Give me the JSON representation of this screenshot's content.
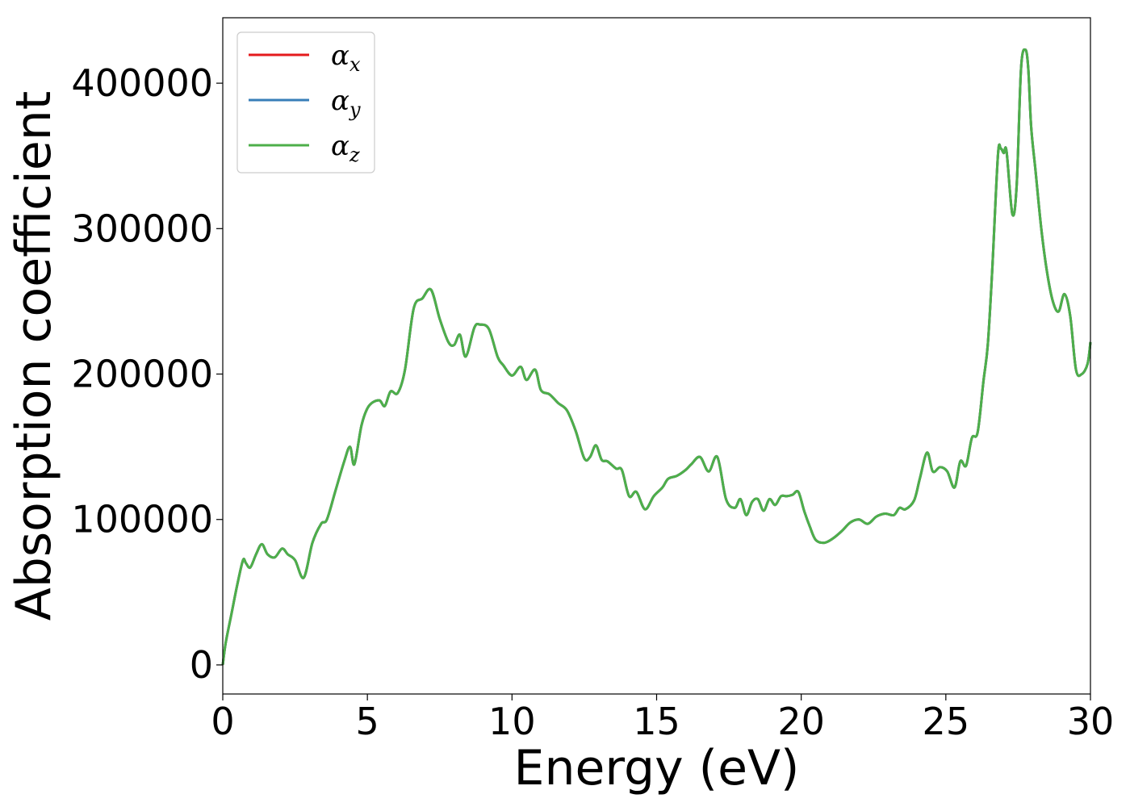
{
  "chart_data": {
    "type": "line",
    "xlabel": "Energy (eV)",
    "ylabel": "Absorption coefficient",
    "xlim": [
      0,
      30
    ],
    "ylim": [
      -20000,
      445000
    ],
    "xticks": [
      0,
      5,
      10,
      15,
      20,
      25,
      30
    ],
    "yticks": [
      0,
      100000,
      200000,
      300000,
      400000
    ],
    "grid": false,
    "legend_position": "top-left",
    "series": [
      {
        "name": "α",
        "sub": "x",
        "color": "#e41a1c"
      },
      {
        "name": "α",
        "sub": "y",
        "color": "#377eb8"
      },
      {
        "name": "α",
        "sub": "z",
        "color": "#4daf4a"
      }
    ],
    "x": [
      0.0,
      0.1,
      0.3,
      0.5,
      0.7,
      0.8,
      0.95,
      1.15,
      1.35,
      1.55,
      1.8,
      2.05,
      2.25,
      2.5,
      2.8,
      3.1,
      3.4,
      3.6,
      3.9,
      4.2,
      4.4,
      4.55,
      4.8,
      5.05,
      5.4,
      5.6,
      5.8,
      6.05,
      6.3,
      6.6,
      6.9,
      7.2,
      7.5,
      7.8,
      8.0,
      8.2,
      8.4,
      8.7,
      8.9,
      9.2,
      9.5,
      9.7,
      10.0,
      10.3,
      10.5,
      10.8,
      11.0,
      11.3,
      11.6,
      11.9,
      12.2,
      12.5,
      12.7,
      12.9,
      13.1,
      13.3,
      13.6,
      13.8,
      14.05,
      14.3,
      14.6,
      14.9,
      15.2,
      15.4,
      15.7,
      16.0,
      16.2,
      16.5,
      16.8,
      17.1,
      17.4,
      17.7,
      17.9,
      18.1,
      18.3,
      18.5,
      18.7,
      18.9,
      19.1,
      19.3,
      19.5,
      19.7,
      19.9,
      20.1,
      20.3,
      20.5,
      20.8,
      21.1,
      21.4,
      21.7,
      22.0,
      22.3,
      22.6,
      22.9,
      23.2,
      23.4,
      23.6,
      23.9,
      24.1,
      24.35,
      24.55,
      24.8,
      25.05,
      25.3,
      25.5,
      25.7,
      25.9,
      26.1,
      26.3,
      26.45,
      26.6,
      26.8,
      26.9,
      27.0,
      27.1,
      27.3,
      27.45,
      27.6,
      27.75,
      27.85,
      27.95,
      28.1,
      28.3,
      28.5,
      28.7,
      28.9,
      29.1,
      29.3,
      29.5,
      29.7,
      29.9,
      30.0
    ],
    "values": [
      0,
      15000,
      35000,
      55000,
      72000,
      70000,
      67000,
      76000,
      83000,
      76000,
      74000,
      80000,
      76000,
      72000,
      60000,
      84000,
      97000,
      100000,
      120000,
      140000,
      150000,
      138000,
      165000,
      178000,
      182000,
      178000,
      188000,
      187000,
      203000,
      245000,
      252000,
      258000,
      238000,
      222000,
      220000,
      227000,
      212000,
      232000,
      234000,
      231000,
      212000,
      206000,
      199000,
      205000,
      196000,
      203000,
      189000,
      186000,
      180000,
      175000,
      161000,
      142000,
      143000,
      151000,
      141000,
      140000,
      135000,
      134000,
      116000,
      119000,
      107000,
      116000,
      122000,
      128000,
      130000,
      134000,
      138000,
      143000,
      133000,
      143000,
      114000,
      108000,
      114000,
      103000,
      112000,
      114000,
      106000,
      114000,
      110000,
      116000,
      116000,
      117000,
      119000,
      106000,
      95000,
      86000,
      84000,
      87000,
      92000,
      98000,
      100000,
      97000,
      102000,
      104000,
      103000,
      108000,
      107000,
      113000,
      128000,
      146000,
      133000,
      136000,
      133000,
      122000,
      140000,
      137000,
      156000,
      160000,
      195000,
      220000,
      270000,
      350000,
      355000,
      352000,
      353000,
      310000,
      330000,
      410000,
      423000,
      410000,
      370000,
      340000,
      300000,
      270000,
      250000,
      243000,
      255000,
      240000,
      203000,
      200000,
      207000,
      222000
    ]
  }
}
